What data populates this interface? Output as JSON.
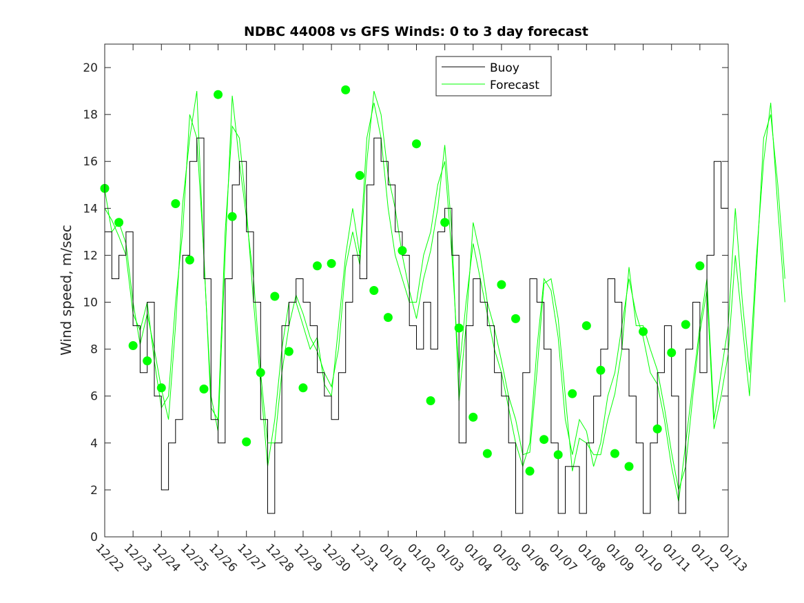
{
  "chart_data": {
    "type": "line",
    "title": "NDBC 44008 vs GFS Winds: 0 to 3 day forecast",
    "xlabel": "",
    "ylabel": "Wind speed, m/sec",
    "xlim": [
      0,
      22
    ],
    "ylim": [
      0,
      21
    ],
    "x_unit": "days since 12/22",
    "x_step": 0.25,
    "xtick_labels": [
      "12/22",
      "12/23",
      "12/24",
      "12/25",
      "12/26",
      "12/27",
      "12/28",
      "12/29",
      "12/30",
      "12/31",
      "01/01",
      "01/02",
      "01/03",
      "01/04",
      "01/05",
      "01/06",
      "01/07",
      "01/08",
      "01/09",
      "01/10",
      "01/11",
      "01/12",
      "01/13"
    ],
    "yticks": [
      0,
      2,
      4,
      6,
      8,
      10,
      12,
      14,
      16,
      18,
      20
    ],
    "grid": false,
    "legend": {
      "placement": "top-center",
      "entries": [
        "Buoy",
        "Forecast"
      ]
    },
    "colors": {
      "buoy": "#000000",
      "forecast": "#00ff00"
    },
    "series": [
      {
        "name": "Buoy",
        "values": [
          13,
          11,
          12,
          13,
          9,
          7,
          10,
          6,
          2,
          4,
          5,
          12,
          16,
          17,
          11,
          5,
          4,
          11,
          15,
          16,
          13,
          10,
          5,
          1,
          4,
          9,
          10,
          11,
          10,
          9,
          7,
          6,
          5,
          7,
          10,
          12,
          11,
          15,
          17,
          16,
          15,
          13,
          12,
          9,
          8,
          10,
          8,
          13,
          14,
          12,
          4,
          9,
          11,
          10,
          9,
          7,
          6,
          4,
          1,
          7,
          11,
          10,
          8,
          4,
          1,
          3,
          3,
          1,
          4,
          6,
          8,
          11,
          10,
          8,
          6,
          4,
          1,
          4,
          7,
          9,
          6,
          1,
          8,
          10,
          7,
          12,
          16,
          14,
          12
        ]
      },
      {
        "name": "Forecast",
        "values": [
          14.8,
          13,
          13.4,
          12.5,
          10,
          8.2,
          9.5,
          8,
          6.3,
          5,
          9,
          14.2,
          17,
          19,
          11.8,
          6,
          4.5,
          12,
          18.8,
          16,
          13.6,
          11,
          7,
          4,
          4,
          7,
          9,
          10.3,
          9.5,
          8.5,
          7.9,
          7,
          6.4,
          8,
          11.5,
          13,
          11.6,
          16,
          19,
          18,
          15.4,
          14,
          12,
          10.5,
          9.3,
          11,
          12.2,
          14,
          16.7,
          13,
          5.8,
          9,
          13.4,
          12,
          10,
          8.9,
          7.5,
          6,
          5,
          3.5,
          3.6,
          7,
          10.8,
          11,
          9.3,
          6,
          2.8,
          4.2,
          4,
          3.5,
          3.5,
          5,
          6.1,
          8,
          11.5,
          9,
          9,
          8,
          7.1,
          5.5,
          3.6,
          2,
          3,
          6,
          8.7,
          10.5,
          4.6,
          6,
          7.8,
          12,
          9,
          6,
          11.5,
          17,
          18,
          15,
          11
        ]
      },
      {
        "name": "Forecast",
        "values": [
          14,
          13.5,
          12.8,
          12,
          9.5,
          8.8,
          10,
          7.5,
          5.5,
          6,
          10,
          13,
          18,
          17,
          12,
          5.5,
          5,
          13,
          17.5,
          17,
          14,
          10,
          6.5,
          3,
          5,
          8,
          10,
          10,
          9,
          8,
          8.5,
          6.5,
          6,
          9,
          12,
          14,
          12,
          17,
          18.5,
          17,
          14,
          12,
          11,
          10,
          10,
          12,
          13,
          15,
          16,
          12,
          7,
          10,
          12.5,
          11,
          9.5,
          8,
          7,
          5.5,
          4,
          3,
          4,
          8,
          11,
          10.5,
          8.5,
          5,
          3.5,
          5,
          4.5,
          3,
          4,
          6,
          7,
          9,
          11,
          9.5,
          8.5,
          7,
          6.5,
          5,
          3,
          1.5,
          4,
          6.5,
          9,
          11,
          5,
          7,
          9,
          14,
          10,
          7,
          12,
          16,
          18.5,
          14,
          10
        ]
      }
    ],
    "analysis_points": {
      "name": "Forecast (0-hour)",
      "x": [
        0,
        0.5,
        1,
        1.5,
        2,
        2.5,
        3,
        3.5,
        4,
        4.5,
        5,
        5.5,
        6,
        6.5,
        7,
        7.5,
        8,
        8.5,
        9,
        9.5,
        10,
        10.5,
        11,
        11.5,
        12,
        12.5,
        13,
        13.5,
        14,
        14.5,
        15,
        15.5,
        16,
        16.5,
        17,
        17.5,
        18,
        18.5,
        19,
        19.5,
        20,
        20.5,
        21
      ],
      "y": [
        14.85,
        13.4,
        8.15,
        7.5,
        6.35,
        14.2,
        11.8,
        6.3,
        18.85,
        13.65,
        4.05,
        7.0,
        10.25,
        7.9,
        6.35,
        11.55,
        11.65,
        19.05,
        15.4,
        10.5,
        9.35,
        12.2,
        16.75,
        5.8,
        13.4,
        8.9,
        5.1,
        3.55,
        10.75,
        9.3,
        2.8,
        4.15,
        3.5,
        6.1,
        9.0,
        7.1,
        3.55,
        3.0,
        8.75,
        4.6,
        7.85,
        9.05,
        11.55
      ]
    }
  }
}
